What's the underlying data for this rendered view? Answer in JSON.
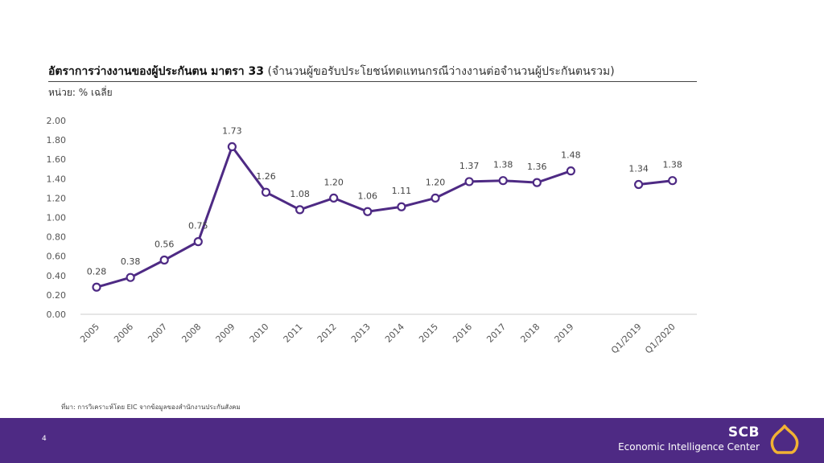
{
  "header": {
    "title_bold": "อัตราการว่างงานของผู้ประกันตน มาตรา 33",
    "title_sub": "(จำนวนผู้ขอรับประโยชน์ทดแทนกรณีว่างงานต่อจำนวนผู้ประกันตนรวม)",
    "unit": "หน่วย: % เฉลี่ย"
  },
  "chart_data": {
    "type": "line",
    "categories": [
      "2005",
      "2006",
      "2007",
      "2008",
      "2009",
      "2010",
      "2011",
      "2012",
      "2013",
      "2014",
      "2015",
      "2016",
      "2017",
      "2018",
      "2019",
      "",
      "Q1/2019",
      "Q1/2020"
    ],
    "values": [
      0.28,
      0.38,
      0.56,
      0.75,
      1.73,
      1.26,
      1.08,
      1.2,
      1.06,
      1.11,
      1.2,
      1.37,
      1.38,
      1.36,
      1.48,
      null,
      1.34,
      1.38
    ],
    "data_labels": [
      "0.28",
      "0.38",
      "0.56",
      "0.75",
      "1.73",
      "1.26",
      "1.08",
      "1.20",
      "1.06",
      "1.11",
      "1.20",
      "1.37",
      "1.38",
      "1.36",
      "1.48",
      "",
      "1.34",
      "1.38"
    ],
    "yticks": [
      "0.00",
      "0.20",
      "0.40",
      "0.60",
      "0.80",
      "1.00",
      "1.20",
      "1.40",
      "1.60",
      "1.80",
      "2.00"
    ],
    "ylim": [
      0,
      2
    ],
    "grid": false,
    "legend": "none",
    "line_color": "#4e2a84",
    "marker_fill": "#ffffff"
  },
  "source": "ที่มา: การวิเคราะห์โดย EIC จากข้อมูลของสำนักงานประกันสังคม",
  "footer": {
    "page_number": "4",
    "brand_name": "SCB",
    "brand_sub": "Economic Intelligence Center",
    "bg_color": "#4e2a84",
    "logo_color": "#f2b233"
  }
}
